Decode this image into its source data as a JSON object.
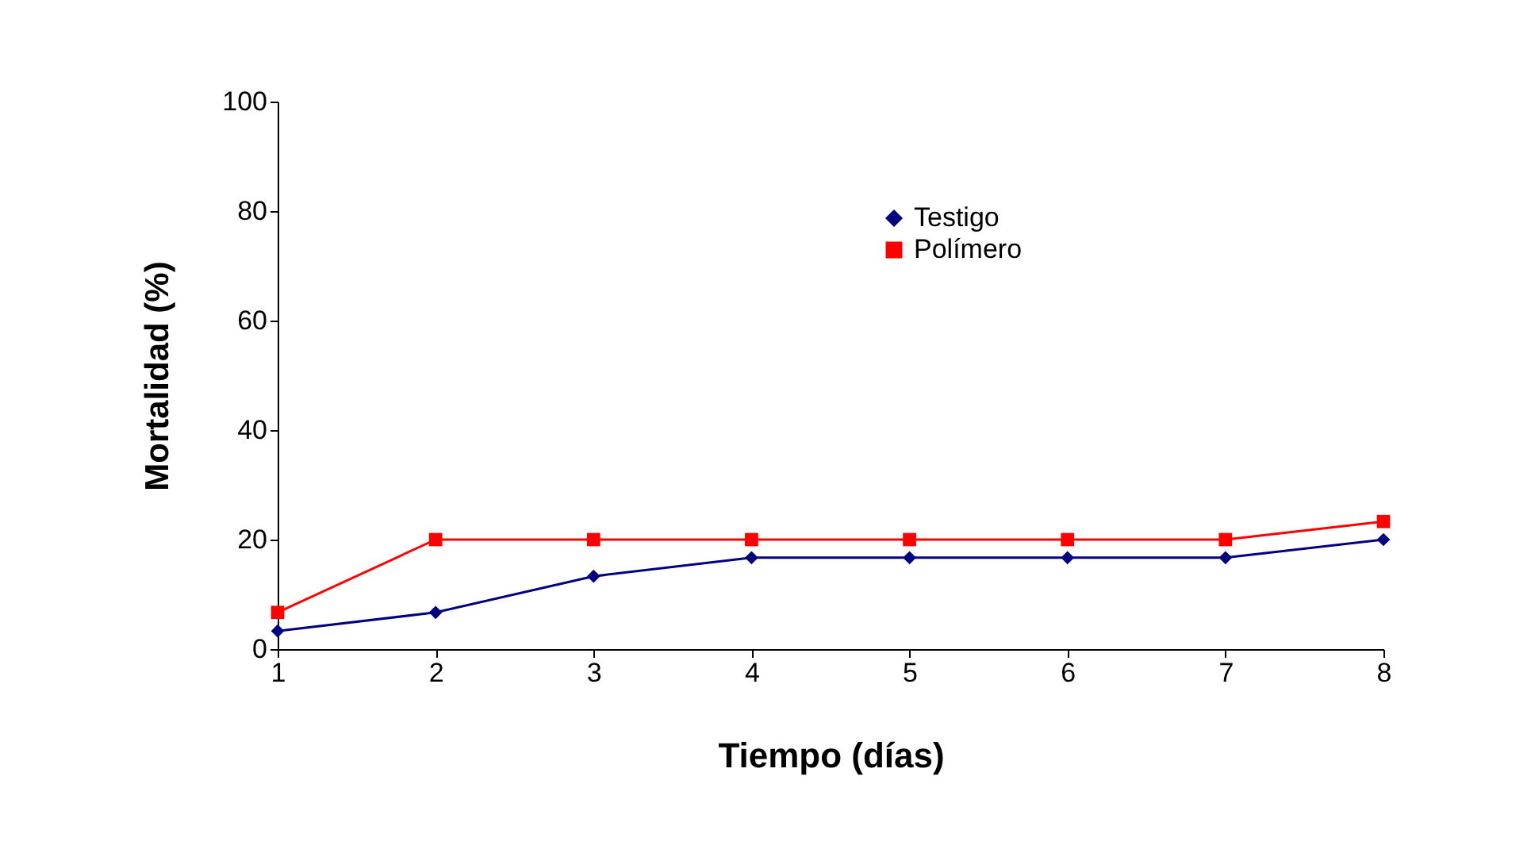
{
  "chart_data": {
    "type": "line",
    "xlabel": "Tiempo (días)",
    "ylabel": "Mortalidad (%)",
    "x": [
      1,
      2,
      3,
      4,
      5,
      6,
      7,
      8
    ],
    "xlim": [
      1,
      8
    ],
    "xticks": [
      1,
      2,
      3,
      4,
      5,
      6,
      7,
      8
    ],
    "ylim": [
      0,
      100
    ],
    "yticks": [
      0,
      20,
      40,
      60,
      80,
      100
    ],
    "grid": false,
    "legend": "top right",
    "series": [
      {
        "name": "Testigo",
        "color": "#000080",
        "marker": "diamond",
        "values": [
          3.3,
          6.7,
          13.3,
          16.7,
          16.7,
          16.7,
          16.7,
          20
        ]
      },
      {
        "name": "Polímero",
        "color": "#ff0000",
        "marker": "square",
        "values": [
          6.7,
          20,
          20,
          20,
          20,
          20,
          20,
          23.3
        ]
      }
    ]
  }
}
